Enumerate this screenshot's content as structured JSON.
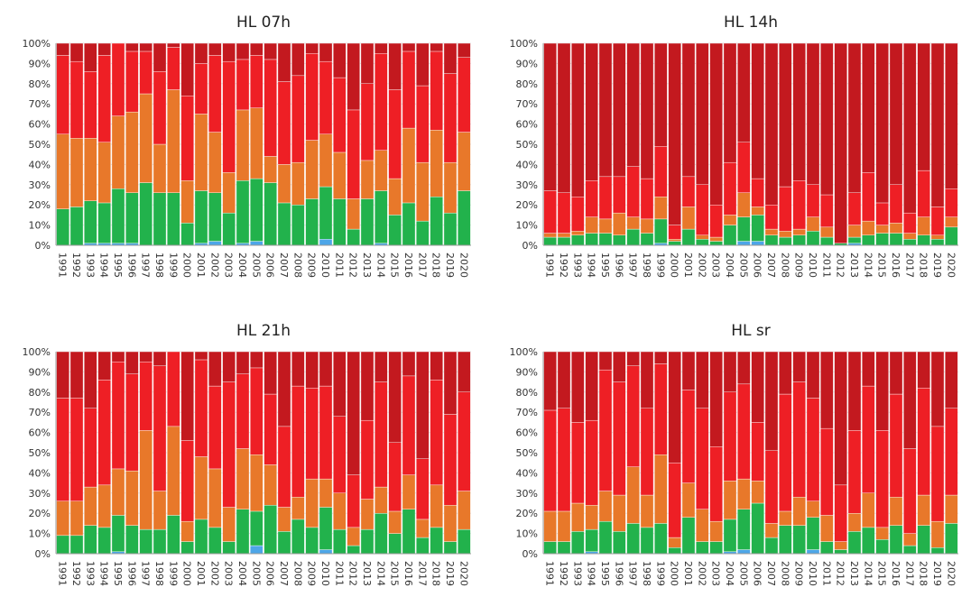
{
  "colors": {
    "blue": "#4da6e8",
    "green": "#22b24c",
    "orange": "#e8782a",
    "red": "#ee1f25",
    "darkred": "#c3191f"
  },
  "chart_data": [
    {
      "type": "bar",
      "stacked": true,
      "title": "HL 07h",
      "xlabel": "",
      "ylabel": "",
      "ylim": [
        0,
        100
      ],
      "ytick_labels": [
        "0%",
        "10%",
        "20%",
        "30%",
        "40%",
        "50%",
        "60%",
        "70%",
        "80%",
        "90%",
        "100%"
      ],
      "categories": [
        "1991",
        "1992",
        "1993",
        "1994",
        "1995",
        "1996",
        "1997",
        "1998",
        "1999",
        "2000",
        "2001",
        "2002",
        "2003",
        "2004",
        "2005",
        "2006",
        "2007",
        "2008",
        "2009",
        "2010",
        "2011",
        "2012",
        "2013",
        "2014",
        "2015",
        "2016",
        "2017",
        "2018",
        "2019",
        "2020"
      ],
      "series": [
        {
          "color": "blue",
          "values": [
            0,
            0,
            1,
            1,
            1,
            1,
            0,
            0,
            0,
            0,
            1,
            2,
            0,
            1,
            2,
            0,
            0,
            0,
            0,
            3,
            0,
            0,
            0,
            1,
            0,
            0,
            0,
            0,
            0,
            0
          ]
        },
        {
          "color": "green",
          "values": [
            18,
            19,
            21,
            20,
            27,
            25,
            31,
            26,
            26,
            11,
            26,
            24,
            16,
            31,
            31,
            31,
            21,
            20,
            23,
            26,
            23,
            8,
            23,
            26,
            15,
            21,
            12,
            24,
            16,
            27
          ]
        },
        {
          "color": "orange",
          "values": [
            37,
            34,
            31,
            30,
            36,
            40,
            44,
            24,
            51,
            21,
            38,
            30,
            20,
            35,
            35,
            13,
            19,
            21,
            29,
            26,
            23,
            15,
            19,
            20,
            18,
            37,
            29,
            33,
            25,
            29
          ]
        },
        {
          "color": "red",
          "values": [
            39,
            38,
            33,
            43,
            36,
            30,
            21,
            36,
            21,
            42,
            25,
            38,
            55,
            25,
            26,
            48,
            41,
            43,
            43,
            36,
            37,
            44,
            38,
            48,
            44,
            38,
            38,
            39,
            44,
            37
          ]
        },
        {
          "color": "darkred",
          "values": [
            6,
            9,
            14,
            6,
            0,
            4,
            4,
            14,
            2,
            26,
            10,
            6,
            9,
            8,
            6,
            8,
            19,
            16,
            5,
            9,
            17,
            33,
            20,
            5,
            23,
            4,
            21,
            4,
            15,
            7
          ]
        }
      ]
    },
    {
      "type": "bar",
      "stacked": true,
      "title": "HL 14h",
      "xlabel": "",
      "ylabel": "",
      "ylim": [
        0,
        100
      ],
      "ytick_labels": [
        "0%",
        "10%",
        "20%",
        "30%",
        "40%",
        "50%",
        "60%",
        "70%",
        "80%",
        "90%",
        "100%"
      ],
      "categories": [
        "1991",
        "1992",
        "1993",
        "1994",
        "1995",
        "1996",
        "1997",
        "1998",
        "1999",
        "2000",
        "2001",
        "2002",
        "2003",
        "2004",
        "2005",
        "2006",
        "2007",
        "2008",
        "2009",
        "2010",
        "2011",
        "2012",
        "2013",
        "2014",
        "2015",
        "2016",
        "2017",
        "2018",
        "2019",
        "2020"
      ],
      "series": [
        {
          "color": "blue",
          "values": [
            0,
            0,
            0,
            0,
            0,
            0,
            0,
            0,
            1,
            0,
            0,
            0,
            0,
            0,
            2,
            2,
            0,
            0,
            0,
            0,
            0,
            0,
            1,
            0,
            0,
            0,
            0,
            0,
            0,
            0
          ]
        },
        {
          "color": "green",
          "values": [
            4,
            4,
            5,
            6,
            6,
            5,
            8,
            6,
            12,
            2,
            8,
            3,
            2,
            10,
            12,
            13,
            5,
            4,
            5,
            7,
            4,
            1,
            3,
            5,
            6,
            6,
            3,
            5,
            3,
            9
          ]
        },
        {
          "color": "orange",
          "values": [
            2,
            2,
            2,
            8,
            7,
            11,
            6,
            7,
            11,
            1,
            11,
            2,
            2,
            5,
            12,
            4,
            3,
            3,
            3,
            7,
            5,
            0,
            6,
            7,
            4,
            5,
            3,
            9,
            2,
            5
          ]
        },
        {
          "color": "red",
          "values": [
            21,
            20,
            17,
            18,
            21,
            18,
            25,
            20,
            25,
            7,
            15,
            25,
            16,
            26,
            25,
            14,
            12,
            22,
            24,
            16,
            16,
            0,
            16,
            24,
            11,
            19,
            10,
            23,
            14,
            14
          ]
        },
        {
          "color": "darkred",
          "values": [
            73,
            74,
            76,
            68,
            66,
            66,
            61,
            67,
            51,
            90,
            66,
            70,
            80,
            59,
            49,
            67,
            80,
            71,
            68,
            70,
            75,
            99,
            74,
            64,
            79,
            70,
            84,
            63,
            81,
            72
          ]
        }
      ]
    },
    {
      "type": "bar",
      "stacked": true,
      "title": "HL 21h",
      "xlabel": "",
      "ylabel": "",
      "ylim": [
        0,
        100
      ],
      "ytick_labels": [
        "0%",
        "10%",
        "20%",
        "30%",
        "40%",
        "50%",
        "60%",
        "70%",
        "80%",
        "90%",
        "100%"
      ],
      "categories": [
        "1991",
        "1992",
        "1993",
        "1994",
        "1995",
        "1996",
        "1997",
        "1998",
        "1999",
        "2000",
        "2001",
        "2002",
        "2003",
        "2004",
        "2005",
        "2006",
        "2007",
        "2008",
        "2009",
        "2010",
        "2011",
        "2012",
        "2013",
        "2014",
        "2015",
        "2016",
        "2017",
        "2018",
        "2019",
        "2020"
      ],
      "series": [
        {
          "color": "blue",
          "values": [
            0,
            0,
            0,
            0,
            1,
            0,
            0,
            0,
            0,
            0,
            0,
            0,
            0,
            0,
            4,
            0,
            0,
            0,
            0,
            2,
            0,
            0,
            0,
            0,
            0,
            0,
            0,
            0,
            0,
            0
          ]
        },
        {
          "color": "green",
          "values": [
            9,
            9,
            14,
            13,
            18,
            14,
            12,
            12,
            19,
            6,
            17,
            13,
            6,
            22,
            17,
            24,
            11,
            17,
            13,
            21,
            12,
            4,
            12,
            20,
            10,
            22,
            8,
            13,
            6,
            12
          ]
        },
        {
          "color": "orange",
          "values": [
            17,
            17,
            19,
            21,
            23,
            27,
            49,
            19,
            44,
            10,
            31,
            29,
            17,
            30,
            28,
            20,
            12,
            11,
            24,
            14,
            18,
            9,
            15,
            13,
            11,
            17,
            9,
            21,
            18,
            19
          ]
        },
        {
          "color": "red",
          "values": [
            51,
            51,
            39,
            52,
            53,
            48,
            34,
            62,
            37,
            40,
            48,
            41,
            62,
            37,
            43,
            35,
            40,
            55,
            45,
            46,
            38,
            26,
            39,
            52,
            34,
            49,
            30,
            52,
            45,
            49
          ]
        },
        {
          "color": "darkred",
          "values": [
            23,
            23,
            28,
            14,
            5,
            11,
            5,
            7,
            0,
            44,
            4,
            17,
            15,
            11,
            8,
            21,
            37,
            17,
            18,
            17,
            32,
            61,
            34,
            15,
            45,
            12,
            53,
            14,
            31,
            20
          ]
        }
      ]
    },
    {
      "type": "bar",
      "stacked": true,
      "title": "HL sr",
      "xlabel": "",
      "ylabel": "",
      "ylim": [
        0,
        100
      ],
      "ytick_labels": [
        "0%",
        "10%",
        "20%",
        "30%",
        "40%",
        "50%",
        "60%",
        "70%",
        "80%",
        "90%",
        "100%"
      ],
      "categories": [
        "1991",
        "1992",
        "1993",
        "1994",
        "1995",
        "1996",
        "1997",
        "1998",
        "1999",
        "2000",
        "2001",
        "2002",
        "2003",
        "2004",
        "2005",
        "2006",
        "2007",
        "2008",
        "2009",
        "2010",
        "2011",
        "2012",
        "2013",
        "2014",
        "2015",
        "2016",
        "2017",
        "2018",
        "2019",
        "2020"
      ],
      "series": [
        {
          "color": "blue",
          "values": [
            0,
            0,
            0,
            1,
            0,
            0,
            0,
            0,
            0,
            0,
            0,
            0,
            0,
            1,
            2,
            0,
            0,
            0,
            0,
            2,
            0,
            0,
            0,
            0,
            0,
            0,
            0,
            0,
            0,
            0
          ]
        },
        {
          "color": "green",
          "values": [
            6,
            6,
            11,
            11,
            16,
            11,
            15,
            13,
            15,
            3,
            18,
            6,
            6,
            16,
            20,
            25,
            8,
            14,
            14,
            16,
            6,
            2,
            11,
            13,
            7,
            14,
            4,
            14,
            3,
            15
          ]
        },
        {
          "color": "orange",
          "values": [
            15,
            15,
            14,
            12,
            15,
            18,
            28,
            16,
            34,
            5,
            17,
            16,
            10,
            19,
            15,
            11,
            7,
            7,
            14,
            8,
            13,
            4,
            9,
            17,
            6,
            14,
            6,
            15,
            13,
            14
          ]
        },
        {
          "color": "red",
          "values": [
            50,
            51,
            40,
            42,
            60,
            56,
            50,
            43,
            45,
            37,
            46,
            50,
            37,
            44,
            47,
            29,
            36,
            58,
            57,
            51,
            43,
            28,
            41,
            53,
            48,
            51,
            42,
            53,
            47,
            43
          ]
        },
        {
          "color": "darkred",
          "values": [
            29,
            28,
            35,
            34,
            9,
            15,
            7,
            28,
            6,
            55,
            19,
            28,
            47,
            20,
            16,
            35,
            49,
            21,
            15,
            23,
            38,
            66,
            39,
            17,
            39,
            21,
            48,
            18,
            37,
            28
          ]
        }
      ]
    }
  ]
}
